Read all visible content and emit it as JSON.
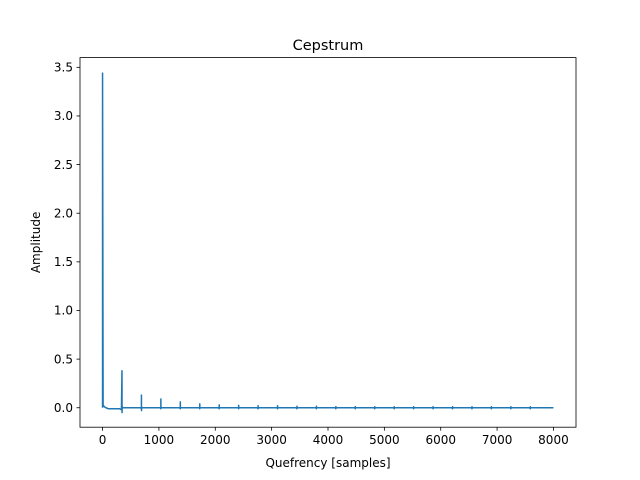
{
  "chart_data": {
    "type": "line",
    "title": "Cepstrum",
    "xlabel": "Quefrency [samples]",
    "ylabel": "Amplitude",
    "xlim": [
      -400,
      8400
    ],
    "ylim": [
      -0.2,
      3.6
    ],
    "grid": false,
    "series_color": "#1f77b4",
    "xticks": [
      0,
      1000,
      2000,
      3000,
      4000,
      5000,
      6000,
      7000,
      8000
    ],
    "xtick_labels": [
      "0",
      "1000",
      "2000",
      "3000",
      "4000",
      "5000",
      "6000",
      "7000",
      "8000"
    ],
    "yticks": [
      0.0,
      0.5,
      1.0,
      1.5,
      2.0,
      2.5,
      3.0,
      3.5
    ],
    "ytick_labels": [
      "0.0",
      "0.5",
      "1.0",
      "1.5",
      "2.0",
      "2.5",
      "3.0",
      "3.5"
    ],
    "series": [
      {
        "x": [
          0,
          0,
          10,
          30,
          60,
          100,
          200,
          300,
          335,
          345,
          346,
          348,
          349,
          355,
          360,
          400,
          500,
          600,
          680,
          689,
          690,
          691,
          695,
          700,
          800,
          900,
          1000,
          1030,
          1034,
          1035,
          1036,
          1040,
          1100,
          1200,
          1300,
          1370,
          1379,
          1380,
          1381,
          1385,
          1400,
          1500,
          1600,
          1700,
          1720,
          1724,
          1725,
          1726,
          1730,
          1800,
          1900,
          2000,
          2060,
          2069,
          2070,
          2071,
          2080,
          2200,
          2300,
          2400,
          2410,
          2414,
          2415,
          2416,
          2420,
          2500,
          2700,
          2750,
          2759,
          2760,
          2761,
          2770,
          2900,
          3000,
          3100,
          3104,
          3105,
          3106,
          3110,
          3300,
          3440,
          3449,
          3450,
          3451,
          3460,
          3700,
          3790,
          3794,
          3795,
          3796,
          3800,
          4100,
          4130,
          4139,
          4140,
          4141,
          4150,
          4400,
          4480,
          4484,
          4485,
          4486,
          4490,
          4800,
          4820,
          4829,
          4830,
          4831,
          4840,
          5100,
          5170,
          5174,
          5175,
          5176,
          5180,
          5500,
          5510,
          5519,
          5520,
          5521,
          5530,
          5800,
          5860,
          5864,
          5865,
          5866,
          5870,
          6200,
          6209,
          6210,
          6211,
          6220,
          6500,
          6550,
          6554,
          6555,
          6556,
          6560,
          6890,
          6899,
          6900,
          6901,
          6910,
          7200,
          7240,
          7244,
          7245,
          7246,
          7250,
          7580,
          7589,
          7590,
          7591,
          7600,
          7800,
          8000
        ],
        "y": [
          0.0,
          3.44,
          0.03,
          0.01,
          0.0,
          -0.01,
          -0.01,
          -0.01,
          -0.02,
          0.38,
          -0.05,
          0.02,
          0.0,
          0.0,
          0.0,
          0.0,
          0.0,
          0.0,
          0.0,
          -0.01,
          0.13,
          -0.03,
          0.0,
          0.0,
          0.0,
          0.0,
          0.0,
          0.0,
          -0.01,
          0.09,
          0.0,
          0.0,
          0.0,
          0.0,
          0.0,
          0.0,
          -0.01,
          0.06,
          0.0,
          0.0,
          0.0,
          0.0,
          0.0,
          0.0,
          0.0,
          -0.01,
          0.04,
          0.0,
          0.0,
          0.0,
          0.0,
          0.0,
          0.0,
          -0.01,
          0.03,
          0.0,
          0.0,
          0.0,
          0.0,
          0.0,
          0.0,
          -0.01,
          0.025,
          0.0,
          0.0,
          0.0,
          0.0,
          0.0,
          -0.01,
          0.02,
          0.0,
          0.0,
          0.0,
          0.0,
          0.0,
          -0.01,
          0.02,
          0.0,
          0.0,
          0.0,
          0.0,
          -0.01,
          0.015,
          0.0,
          0.0,
          0.0,
          0.0,
          -0.01,
          0.015,
          0.0,
          0.0,
          0.0,
          0.0,
          -0.01,
          0.012,
          0.0,
          0.0,
          0.0,
          0.0,
          -0.01,
          0.012,
          0.0,
          0.0,
          0.0,
          0.0,
          -0.01,
          0.01,
          0.0,
          0.0,
          0.0,
          0.0,
          -0.01,
          0.01,
          0.0,
          0.0,
          0.0,
          0.0,
          -0.01,
          0.01,
          0.0,
          0.0,
          0.0,
          0.0,
          -0.01,
          0.01,
          0.0,
          0.0,
          0.0,
          -0.01,
          0.01,
          0.0,
          0.0,
          0.0,
          0.0,
          -0.01,
          0.01,
          0.0,
          0.0,
          0.0,
          -0.01,
          0.01,
          0.0,
          0.0,
          0.0,
          0.0,
          -0.01,
          0.01,
          0.0,
          0.0,
          0.0,
          -0.01,
          0.01,
          0.0,
          0.0,
          0.0,
          0.0
        ]
      }
    ]
  }
}
